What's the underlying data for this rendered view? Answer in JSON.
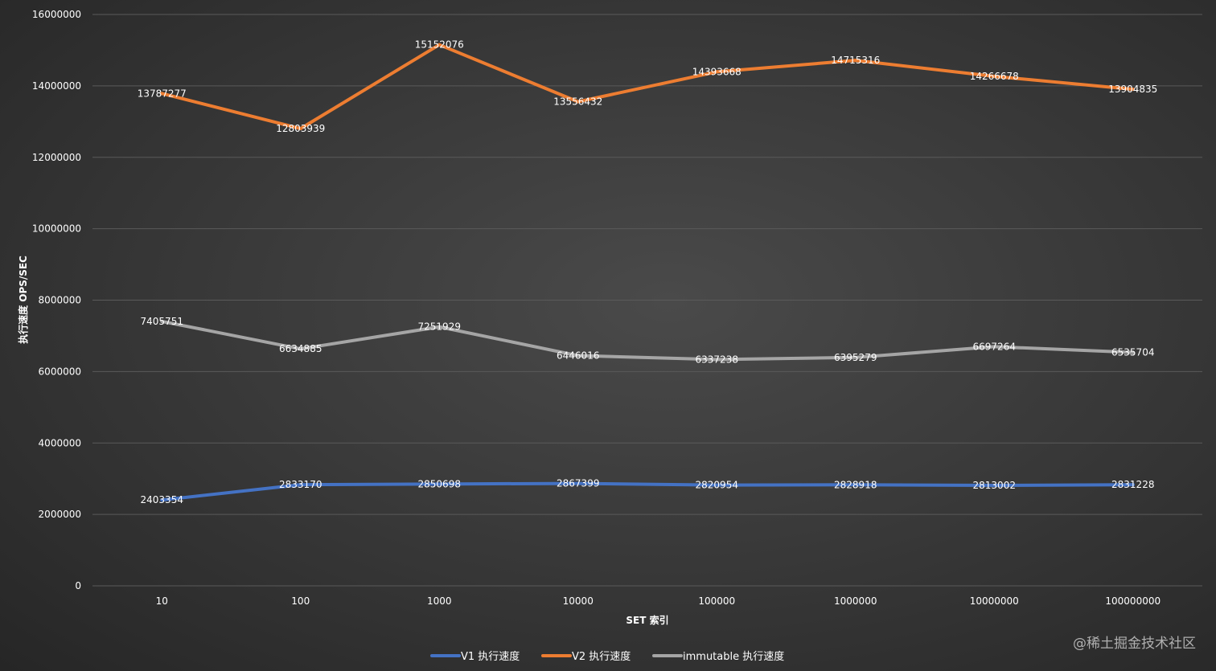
{
  "chart_data": {
    "type": "line",
    "title": "",
    "xlabel": "SET 索引",
    "ylabel": "执行速度 OPS/SEC",
    "categories": [
      "10",
      "100",
      "1000",
      "10000",
      "100000",
      "1000000",
      "10000000",
      "100000000"
    ],
    "ylim": [
      0,
      16000000
    ],
    "yticks": [
      "0",
      "2000000",
      "4000000",
      "6000000",
      "8000000",
      "10000000",
      "12000000",
      "14000000",
      "16000000"
    ],
    "grid": "horizontal",
    "legend_position": "bottom",
    "series": [
      {
        "name": "V1 执行速度",
        "color": "#4472c4",
        "values": [
          2403354,
          2833170,
          2850698,
          2867399,
          2820954,
          2828918,
          2813002,
          2831228
        ],
        "labels": [
          "2403354",
          "2833170",
          "2850698",
          "2867399",
          "2820954",
          "2828918",
          "2813002",
          "2831228"
        ]
      },
      {
        "name": "V2 执行速度",
        "color": "#ed7d31",
        "values": [
          13787277,
          12803939,
          15152076,
          13556432,
          14393668,
          14715316,
          14266678,
          13904835
        ],
        "labels": [
          "13787277",
          "12803939",
          "15152076",
          "13556432",
          "14393668",
          "14715316",
          "14266678",
          "13904835"
        ]
      },
      {
        "name": "immutable 执行速度",
        "color": "#a5a5a5",
        "values": [
          7405751,
          6634885,
          7251929,
          6446016,
          6337238,
          6395279,
          6697264,
          6535704
        ],
        "labels": [
          "7405751",
          "6634885",
          "7251929",
          "6446016",
          "6337238",
          "6395279",
          "6697264",
          "6535704"
        ]
      }
    ]
  },
  "watermark": "@稀土掘金技术社区"
}
